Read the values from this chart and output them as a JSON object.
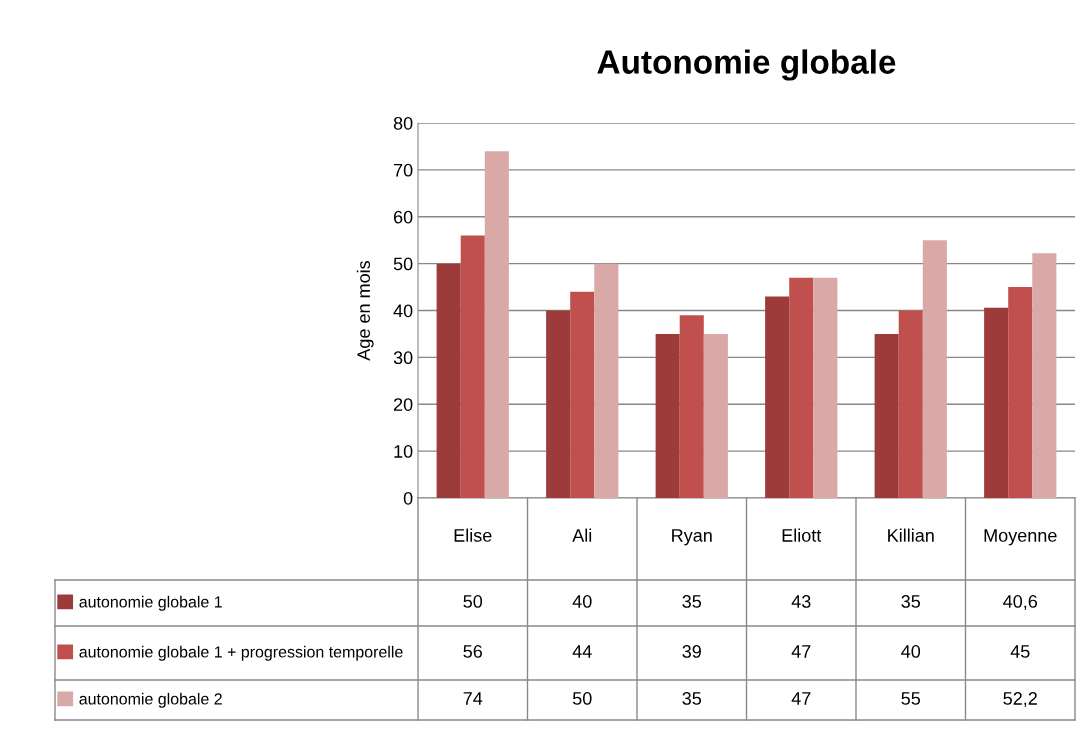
{
  "chart_data": {
    "type": "bar",
    "title": "Autonomie globale",
    "ylabel": "Age en mois",
    "categories": [
      "Elise",
      "Ali",
      "Ryan",
      "Eliott",
      "Killian",
      "Moyenne"
    ],
    "legend": "bottom left",
    "ylim": [
      0,
      80
    ],
    "yticks": [
      0,
      10,
      20,
      30,
      40,
      50,
      60,
      70,
      80
    ],
    "grid": "y",
    "series": [
      {
        "name": "autonomie globale 1",
        "color": "#9c3b3a",
        "values": [
          50,
          40,
          35,
          43,
          35,
          40.6
        ],
        "value_labels": [
          "50",
          "40",
          "35",
          "43",
          "35",
          "40,6"
        ]
      },
      {
        "name": "autonomie globale 1 + progression temporelle",
        "color": "#c0504d",
        "values": [
          56,
          44,
          39,
          47,
          40,
          45
        ],
        "value_labels": [
          "56",
          "44",
          "39",
          "47",
          "40",
          "45"
        ]
      },
      {
        "name": "autonomie globale 2",
        "color": "#d9a9a8",
        "values": [
          74,
          50,
          35,
          47,
          55,
          52.2
        ],
        "value_labels": [
          "74",
          "50",
          "35",
          "47",
          "55",
          "52,2"
        ]
      }
    ]
  }
}
